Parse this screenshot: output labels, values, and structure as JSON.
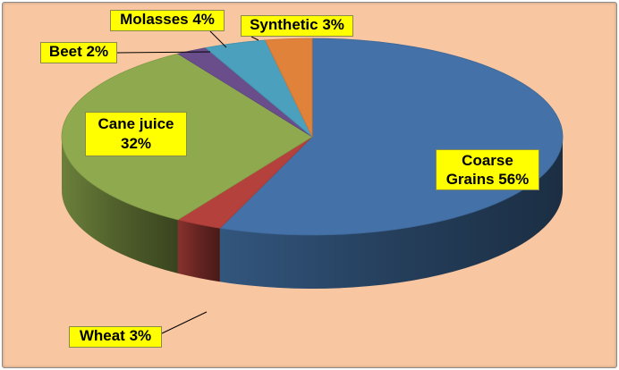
{
  "chart_data": {
    "type": "pie",
    "style": "3d",
    "categories": [
      "Coarse Grains",
      "Wheat",
      "Cane juice",
      "Beet",
      "Molasses",
      "Synthetic"
    ],
    "values": [
      56,
      3,
      32,
      2,
      4,
      3
    ],
    "unit": "%",
    "labels": {
      "coarse_grains": "Coarse Grains 56%",
      "wheat": "Wheat 3%",
      "cane_juice": "Cane juice 32%",
      "beet": "Beet 2%",
      "molasses": "Molasses 4%",
      "synthetic": "Synthetic 3%"
    },
    "colors": [
      "#4472a8",
      "#b5413c",
      "#8faa4e",
      "#6a4e8c",
      "#4ba0bd",
      "#e0823a"
    ],
    "background": "#f8c6a0",
    "label_background": "#ffff00"
  }
}
